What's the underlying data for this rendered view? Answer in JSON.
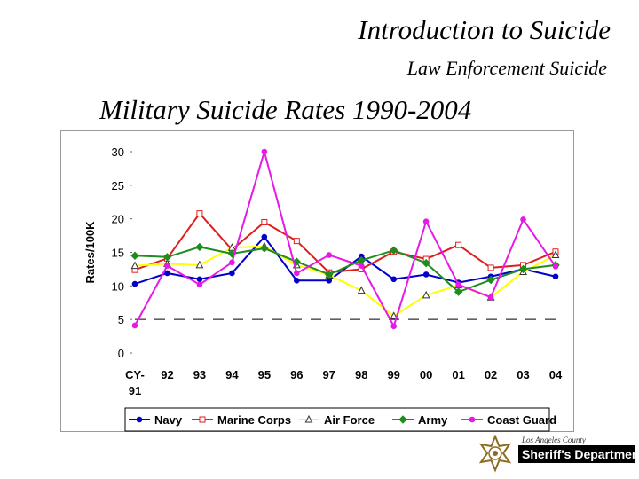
{
  "header": {
    "title": "Introduction to Suicide",
    "subtitle": "Law Enforcement Suicide"
  },
  "logo": {
    "icon": "sheriff-star-icon",
    "top_text": "Los Angeles County",
    "name": "Sheriff's Department"
  },
  "chart_data": {
    "type": "line",
    "title": "Military Suicide Rates 1990-2004",
    "xlabel": "",
    "ylabel": "Rates/100K",
    "categories": [
      "CY-91",
      "92",
      "93",
      "94",
      "95",
      "96",
      "97",
      "98",
      "99",
      "00",
      "01",
      "02",
      "03",
      "04"
    ],
    "ylim": [
      0,
      30
    ],
    "yticks": [
      0,
      5,
      10,
      15,
      20,
      25,
      30
    ],
    "reference_line": 5,
    "legend_position": "bottom",
    "series": [
      {
        "name": "Navy",
        "color": "#0000c8",
        "marker": "circle",
        "values": [
          10.3,
          11.9,
          11.0,
          11.9,
          17.3,
          10.8,
          10.8,
          14.4,
          11.0,
          11.7,
          10.5,
          11.4,
          12.5,
          11.4
        ]
      },
      {
        "name": "Marine Corps",
        "color": "#dd1e1e",
        "marker": "square",
        "values": [
          12.4,
          14.1,
          20.8,
          15.4,
          19.5,
          16.7,
          12.0,
          12.5,
          15.1,
          14.0,
          16.1,
          12.7,
          13.1,
          15.1
        ]
      },
      {
        "name": "Air Force",
        "color": "#ffff00",
        "marker": "triangle",
        "values": [
          13.0,
          13.3,
          13.1,
          15.7,
          15.9,
          13.1,
          11.6,
          9.3,
          5.5,
          8.6,
          10.1,
          8.3,
          12.1,
          14.6
        ]
      },
      {
        "name": "Army",
        "color": "#1e8c1e",
        "marker": "diamond",
        "values": [
          14.5,
          14.3,
          15.8,
          14.8,
          15.6,
          13.6,
          11.7,
          13.8,
          15.3,
          13.4,
          9.1,
          10.9,
          12.5,
          13.1
        ]
      },
      {
        "name": "Coast Guard",
        "color": "#e619e6",
        "marker": "circle",
        "values": [
          4.1,
          13.0,
          10.2,
          13.5,
          30.0,
          11.9,
          14.6,
          13.0,
          4.0,
          19.6,
          10.2,
          8.3,
          19.9,
          12.9
        ]
      }
    ]
  }
}
